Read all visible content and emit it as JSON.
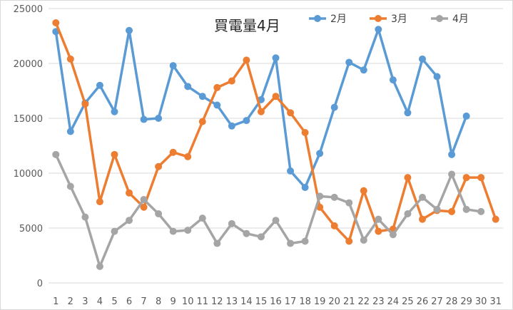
{
  "chart_data": {
    "type": "line",
    "title": "買電量4月",
    "xlabel": "",
    "ylabel": "",
    "ylim": [
      0,
      25000
    ],
    "yticks": [
      0,
      5000,
      10000,
      15000,
      20000,
      25000
    ],
    "grid": "horizontal",
    "legend_position": "top-right",
    "categories": [
      "1",
      "2",
      "3",
      "4",
      "5",
      "6",
      "7",
      "8",
      "9",
      "10",
      "11",
      "12",
      "13",
      "14",
      "15",
      "16",
      "17",
      "18",
      "19",
      "20",
      "21",
      "22",
      "23",
      "24",
      "25",
      "26",
      "27",
      "28",
      "29",
      "30",
      "31"
    ],
    "series": [
      {
        "name": "2月",
        "color": "#5B9BD5",
        "values": [
          22900,
          13800,
          16400,
          18000,
          15600,
          23000,
          14900,
          15000,
          19800,
          17900,
          17000,
          16200,
          14300,
          14800,
          16700,
          20500,
          10200,
          8700,
          11800,
          16000,
          20100,
          19400,
          23100,
          18500,
          15500,
          20400,
          18800,
          11700,
          15200,
          null,
          null
        ]
      },
      {
        "name": "3月",
        "color": "#ED7D31",
        "values": [
          23700,
          20400,
          16300,
          7400,
          11700,
          8200,
          6900,
          10600,
          11900,
          11500,
          14700,
          17800,
          18400,
          20300,
          15600,
          17000,
          15500,
          13700,
          6900,
          5200,
          3800,
          8400,
          4700,
          4900,
          9600,
          5800,
          6600,
          6500,
          9600,
          9600,
          5800
        ]
      },
      {
        "name": "4月",
        "color": "#A5A5A5",
        "values": [
          11700,
          8800,
          6000,
          1500,
          4700,
          5700,
          7600,
          6300,
          4700,
          4800,
          5900,
          3600,
          5400,
          4500,
          4200,
          5700,
          3600,
          3800,
          7900,
          7800,
          7300,
          3900,
          5800,
          4400,
          6300,
          7800,
          6700,
          9900,
          6700,
          6500,
          null
        ]
      }
    ]
  }
}
